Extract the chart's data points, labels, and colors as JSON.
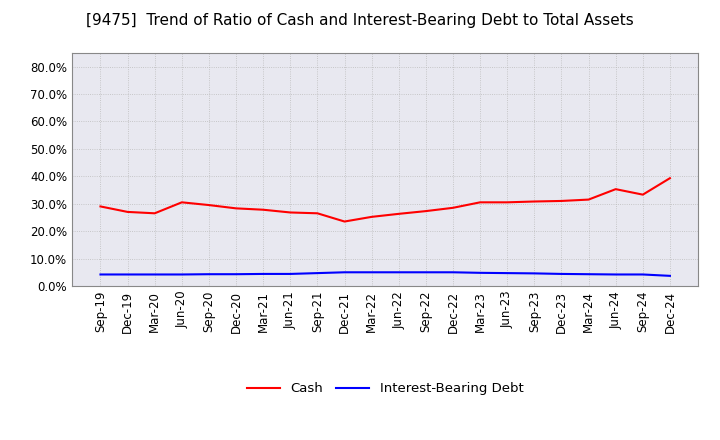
{
  "title": "[9475]  Trend of Ratio of Cash and Interest-Bearing Debt to Total Assets",
  "x_labels": [
    "Sep-19",
    "Dec-19",
    "Mar-20",
    "Jun-20",
    "Sep-20",
    "Dec-20",
    "Mar-21",
    "Jun-21",
    "Sep-21",
    "Dec-21",
    "Mar-22",
    "Jun-22",
    "Sep-22",
    "Dec-22",
    "Mar-23",
    "Jun-23",
    "Sep-23",
    "Dec-23",
    "Mar-24",
    "Jun-24",
    "Sep-24",
    "Dec-24"
  ],
  "cash": [
    0.29,
    0.27,
    0.265,
    0.305,
    0.295,
    0.283,
    0.278,
    0.268,
    0.265,
    0.235,
    0.252,
    0.263,
    0.273,
    0.285,
    0.305,
    0.305,
    0.308,
    0.31,
    0.315,
    0.353,
    0.333,
    0.393
  ],
  "interest_bearing_debt": [
    0.042,
    0.042,
    0.042,
    0.042,
    0.043,
    0.043,
    0.044,
    0.044,
    0.047,
    0.05,
    0.05,
    0.05,
    0.05,
    0.05,
    0.048,
    0.047,
    0.046,
    0.044,
    0.043,
    0.042,
    0.042,
    0.037
  ],
  "cash_color": "#FF0000",
  "debt_color": "#0000FF",
  "background_color": "#FFFFFF",
  "plot_bg_color": "#E8E8F0",
  "grid_color": "#BBBBBB",
  "ylim": [
    0.0,
    0.85
  ],
  "yticks": [
    0.0,
    0.1,
    0.2,
    0.3,
    0.4,
    0.5,
    0.6,
    0.7,
    0.8
  ],
  "legend_labels": [
    "Cash",
    "Interest-Bearing Debt"
  ],
  "title_fontsize": 11,
  "axis_fontsize": 8.5,
  "legend_fontsize": 9.5
}
